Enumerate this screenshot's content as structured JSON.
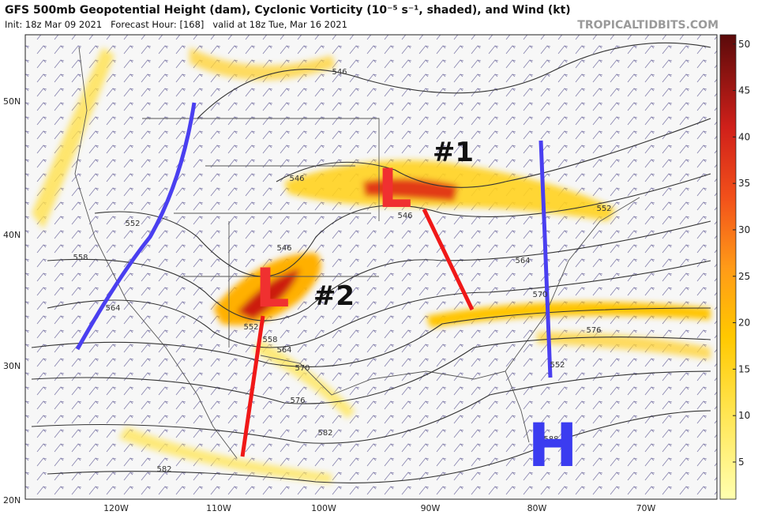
{
  "header": {
    "title": "GFS 500mb Geopotential Height (dam), Cyclonic Vorticity (10⁻⁵ s⁻¹, shaded), and Wind (kt)",
    "subtitle": "Init: 18z Mar 09 2021   Forecast Hour: [168]   valid at 18z Tue, Mar 16 2021",
    "source": "TROPICALTIDBITS.COM"
  },
  "latitude_labels": [
    "50N",
    "40N",
    "30N",
    "20N"
  ],
  "longitude_labels": [
    "120W",
    "110W",
    "100W",
    "90W",
    "80W",
    "70W"
  ],
  "contour_labels": [
    546,
    546,
    552,
    558,
    564,
    546,
    552,
    558,
    564,
    570,
    576,
    582,
    546,
    552,
    564,
    570,
    576,
    582,
    588,
    552
  ],
  "annotations": {
    "system_1": "#1",
    "system_2": "#2",
    "low_1": "L",
    "low_2": "L",
    "high": "H"
  },
  "colorbar": {
    "lim": [
      1,
      51
    ],
    "ticks": [
      5,
      10,
      15,
      20,
      25,
      30,
      35,
      40,
      45,
      50
    ]
  }
}
